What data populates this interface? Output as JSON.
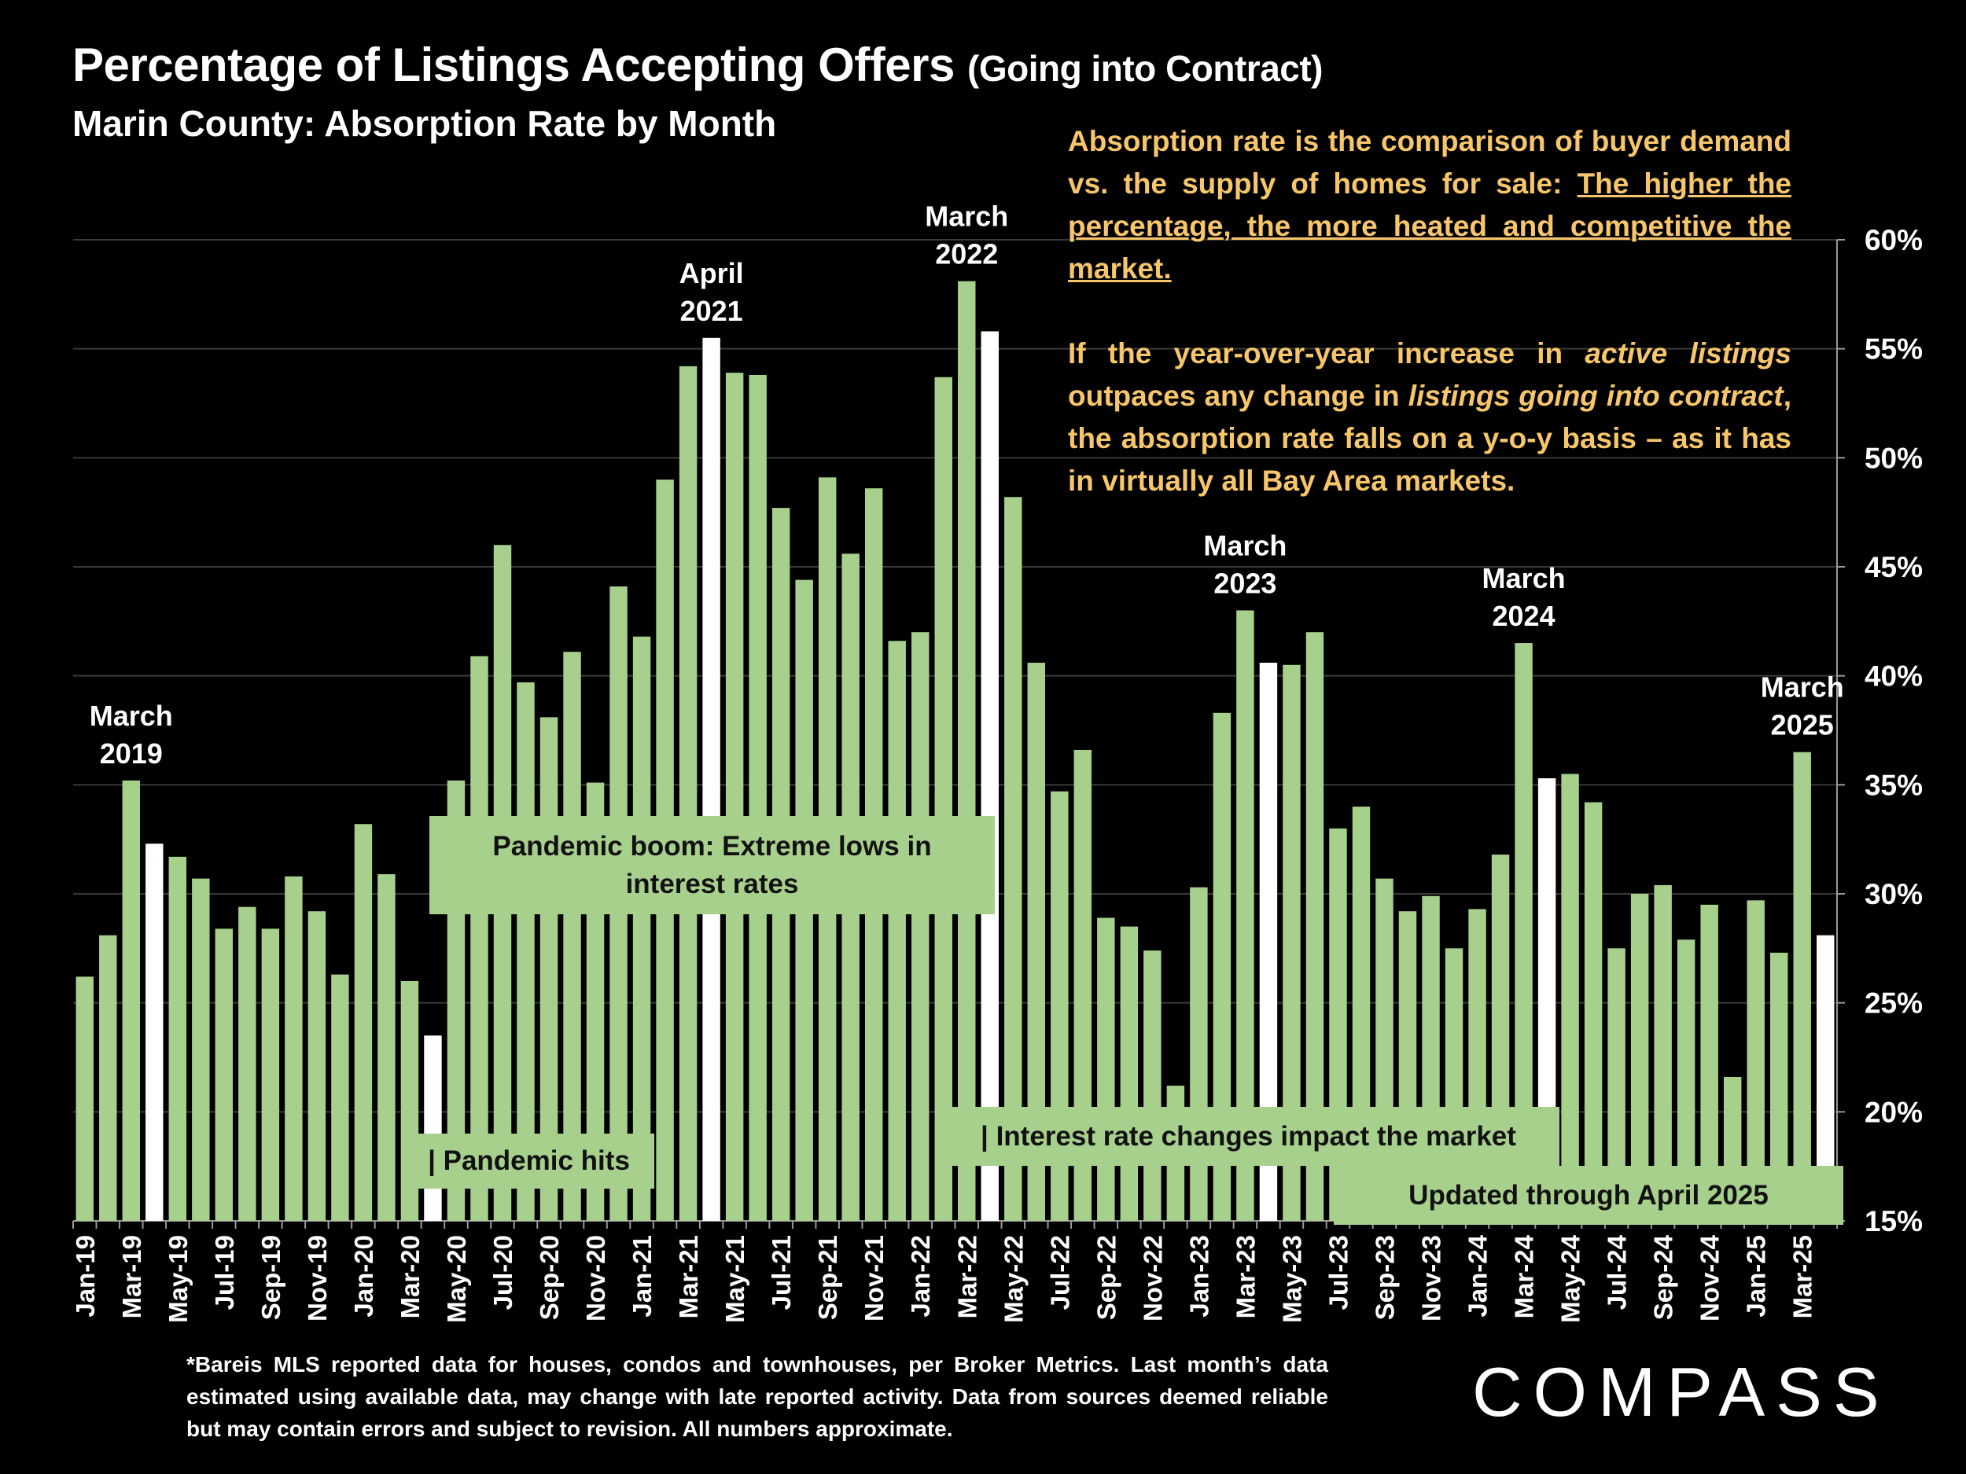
{
  "header": {
    "title_main": "Percentage of Listings Accepting Offers",
    "title_paren": "(Going into Contract)",
    "subtitle": "Marin County:  Absorption Rate by Month"
  },
  "note": {
    "p1_start": "Absorption rate is the comparison of buyer demand vs. the supply of homes for sale: ",
    "p1_underlined": "The higher the percentage, the more heated and competitive the market.",
    "p2_a": "If the year-over-year increase in ",
    "p2_b": "active listings",
    "p2_c": " outpaces any change in ",
    "p2_d": "listings going into contract",
    "p2_e": ", the absorption rate falls on a y-o-y basis – as it has in virtually all Bay Area markets."
  },
  "annotations": {
    "pandemic_boom": "Pandemic boom: Extreme lows in interest rates",
    "pandemic_hits": "| Pandemic hits",
    "interest_rate": "| Interest rate changes impact the market",
    "updated": "Updated through April 2025"
  },
  "footnote": "*Bareis MLS reported data for houses, condos and townhouses, per Broker Metrics. Last month’s data estimated using available data, may change with late reported activity. Data from sources deemed reliable but may contain errors and subject to revision. All numbers approximate.",
  "logo": "COMPASS",
  "colors": {
    "bar": "#a8d08d",
    "highlight": "#ffffff",
    "note": "#f7c66a",
    "background": "#000000"
  },
  "chart_data": {
    "type": "bar",
    "title": "Percentage of Listings Accepting Offers (Going into Contract)",
    "ylim": [
      15,
      60
    ],
    "yticks": [
      15,
      20,
      25,
      30,
      35,
      40,
      45,
      50,
      55,
      60
    ],
    "y_tick_labels": [
      "15%",
      "20%",
      "25%",
      "30%",
      "35%",
      "40%",
      "45%",
      "50%",
      "55%",
      "60%"
    ],
    "y_axis_position": "right",
    "grid": true,
    "categories": [
      "Jan-19",
      "Feb-19",
      "Mar-19",
      "Apr-19",
      "May-19",
      "Jun-19",
      "Jul-19",
      "Aug-19",
      "Sep-19",
      "Oct-19",
      "Nov-19",
      "Dec-19",
      "Jan-20",
      "Feb-20",
      "Mar-20",
      "Apr-20",
      "May-20",
      "Jun-20",
      "Jul-20",
      "Aug-20",
      "Sep-20",
      "Oct-20",
      "Nov-20",
      "Dec-20",
      "Jan-21",
      "Feb-21",
      "Mar-21",
      "Apr-21",
      "May-21",
      "Jun-21",
      "Jul-21",
      "Aug-21",
      "Sep-21",
      "Oct-21",
      "Nov-21",
      "Dec-21",
      "Jan-22",
      "Feb-22",
      "Mar-22",
      "Apr-22",
      "May-22",
      "Jun-22",
      "Jul-22",
      "Aug-22",
      "Sep-22",
      "Oct-22",
      "Nov-22",
      "Dec-22",
      "Jan-23",
      "Feb-23",
      "Mar-23",
      "Apr-23",
      "May-23",
      "Jun-23",
      "Jul-23",
      "Aug-23",
      "Sep-23",
      "Oct-23",
      "Nov-23",
      "Dec-23",
      "Jan-24",
      "Feb-24",
      "Mar-24",
      "Apr-24",
      "May-24",
      "Jun-24",
      "Jul-24",
      "Aug-24",
      "Sep-24",
      "Oct-24",
      "Nov-24",
      "Dec-24",
      "Jan-25",
      "Feb-25",
      "Mar-25",
      "Apr-25"
    ],
    "values": [
      26.2,
      28.1,
      35.2,
      32.3,
      31.7,
      30.7,
      28.4,
      29.4,
      28.4,
      30.8,
      29.2,
      26.3,
      33.2,
      30.9,
      26.0,
      23.5,
      35.2,
      40.9,
      46.0,
      39.7,
      38.1,
      41.1,
      35.1,
      44.1,
      41.8,
      49.0,
      54.2,
      55.5,
      53.9,
      53.8,
      47.7,
      44.4,
      49.1,
      45.6,
      48.6,
      41.6,
      42.0,
      53.7,
      58.1,
      55.8,
      48.2,
      40.6,
      34.7,
      36.6,
      28.9,
      28.5,
      27.4,
      21.2,
      30.3,
      38.3,
      43.0,
      40.6,
      40.5,
      42.0,
      33.0,
      34.0,
      30.7,
      29.2,
      29.9,
      27.5,
      29.3,
      31.8,
      41.5,
      35.3,
      35.5,
      34.2,
      27.5,
      30.0,
      30.4,
      27.9,
      29.5,
      21.6,
      29.7,
      27.3,
      36.5,
      28.1
    ],
    "highlighted": [
      "Apr-19",
      "Apr-20",
      "Apr-21",
      "Apr-22",
      "Apr-23",
      "Apr-24",
      "Apr-25"
    ],
    "x_tick_labels": [
      "Jan-19",
      "Mar-19",
      "May-19",
      "Jul-19",
      "Sep-19",
      "Nov-19",
      "Jan-20",
      "Mar-20",
      "May-20",
      "Jul-20",
      "Sep-20",
      "Nov-20",
      "Jan-21",
      "Mar-21",
      "May-21",
      "Jul-21",
      "Sep-21",
      "Nov-21",
      "Jan-22",
      "Mar-22",
      "May-22",
      "Jul-22",
      "Sep-22",
      "Nov-22",
      "Jan-23",
      "Mar-23",
      "May-23",
      "Jul-23",
      "Sep-23",
      "Nov-23",
      "Jan-24",
      "Mar-24",
      "May-24",
      "Jul-24",
      "Sep-24",
      "Nov-24",
      "Jan-25",
      "Mar-25"
    ],
    "bar_labels": [
      {
        "category": "Mar-19",
        "line1": "March",
        "line2": "2019"
      },
      {
        "category": "Apr-21",
        "line1": "April",
        "line2": "2021"
      },
      {
        "category": "Mar-22",
        "line1": "March",
        "line2": "2022"
      },
      {
        "category": "Mar-23",
        "line1": "March",
        "line2": "2023"
      },
      {
        "category": "Mar-24",
        "line1": "March",
        "line2": "2024"
      },
      {
        "category": "Mar-25",
        "line1": "March",
        "line2": "2025"
      }
    ]
  }
}
